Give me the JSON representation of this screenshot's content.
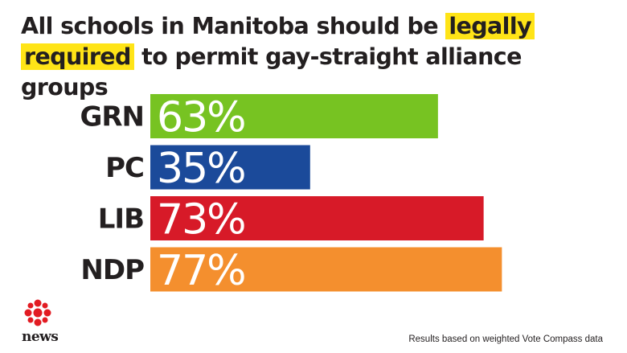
{
  "title": {
    "part1": "All schools in Manitoba should be ",
    "highlight1": "legally",
    "part2": " ",
    "highlight2": "required",
    "part3": " to permit gay-straight alliance groups",
    "highlight_color": "#ffe417"
  },
  "chart_data": {
    "type": "bar",
    "orientation": "horizontal",
    "categories": [
      "GRN",
      "PC",
      "LIB",
      "NDP"
    ],
    "values": [
      63,
      35,
      73,
      77
    ],
    "value_labels": [
      "63%",
      "35%",
      "73%",
      "77%"
    ],
    "colors": [
      "#77c322",
      "#1b4a9a",
      "#d71a28",
      "#f48f2e"
    ],
    "title": "All schools in Manitoba should be legally required to permit gay-straight alliance groups",
    "xlim": [
      0,
      100
    ],
    "grid": false,
    "legend": "none"
  },
  "logo": {
    "icon": "cbc-gem-icon",
    "text": "news",
    "color": "#e21b22"
  },
  "footer": {
    "source": "Results based on weighted Vote Compass data"
  }
}
